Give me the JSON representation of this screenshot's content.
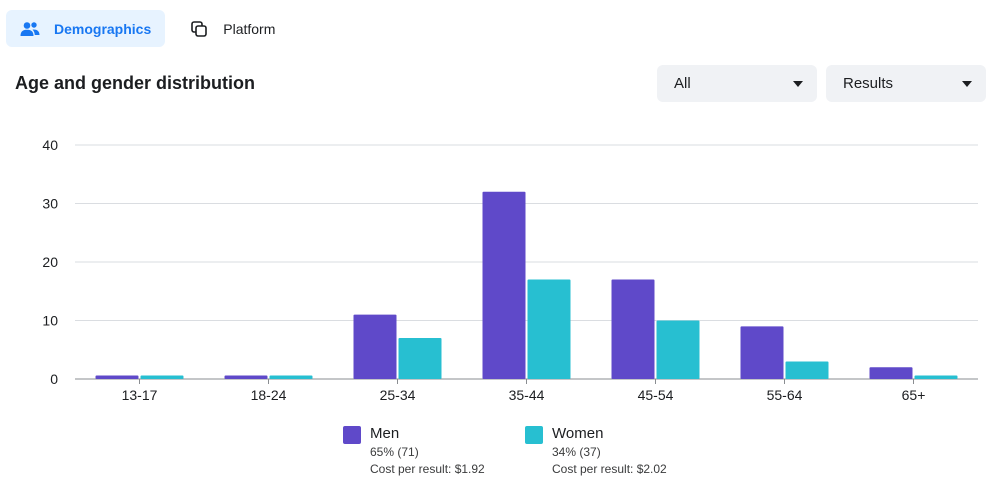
{
  "tabs": [
    {
      "label": "Demographics",
      "active": true,
      "icon": "people-icon"
    },
    {
      "label": "Platform",
      "active": false,
      "icon": "platform-icon"
    }
  ],
  "section_title": "Age and gender distribution",
  "filters": {
    "audience": "All",
    "metric": "Results"
  },
  "colors": {
    "men": "#5f49c9",
    "women": "#27bfd1",
    "accent": "#1877f2"
  },
  "chart_data": {
    "type": "bar",
    "title": "Age and gender distribution",
    "categories": [
      "13-17",
      "18-24",
      "25-34",
      "35-44",
      "45-54",
      "55-64",
      "65+"
    ],
    "series": [
      {
        "name": "Men",
        "values": [
          0.6,
          0.6,
          11,
          32,
          17,
          9,
          2
        ]
      },
      {
        "name": "Women",
        "values": [
          0.6,
          0.6,
          7,
          17,
          10,
          3,
          0.6
        ]
      }
    ],
    "ylim": [
      0,
      40
    ],
    "yticks": [
      0,
      10,
      20,
      30,
      40
    ],
    "grid": true,
    "xlabel": "",
    "ylabel": ""
  },
  "legend": [
    {
      "name": "Men",
      "share": "65% (71)",
      "cost": "Cost per result: $1.92"
    },
    {
      "name": "Women",
      "share": "34% (37)",
      "cost": "Cost per result: $2.02"
    }
  ]
}
